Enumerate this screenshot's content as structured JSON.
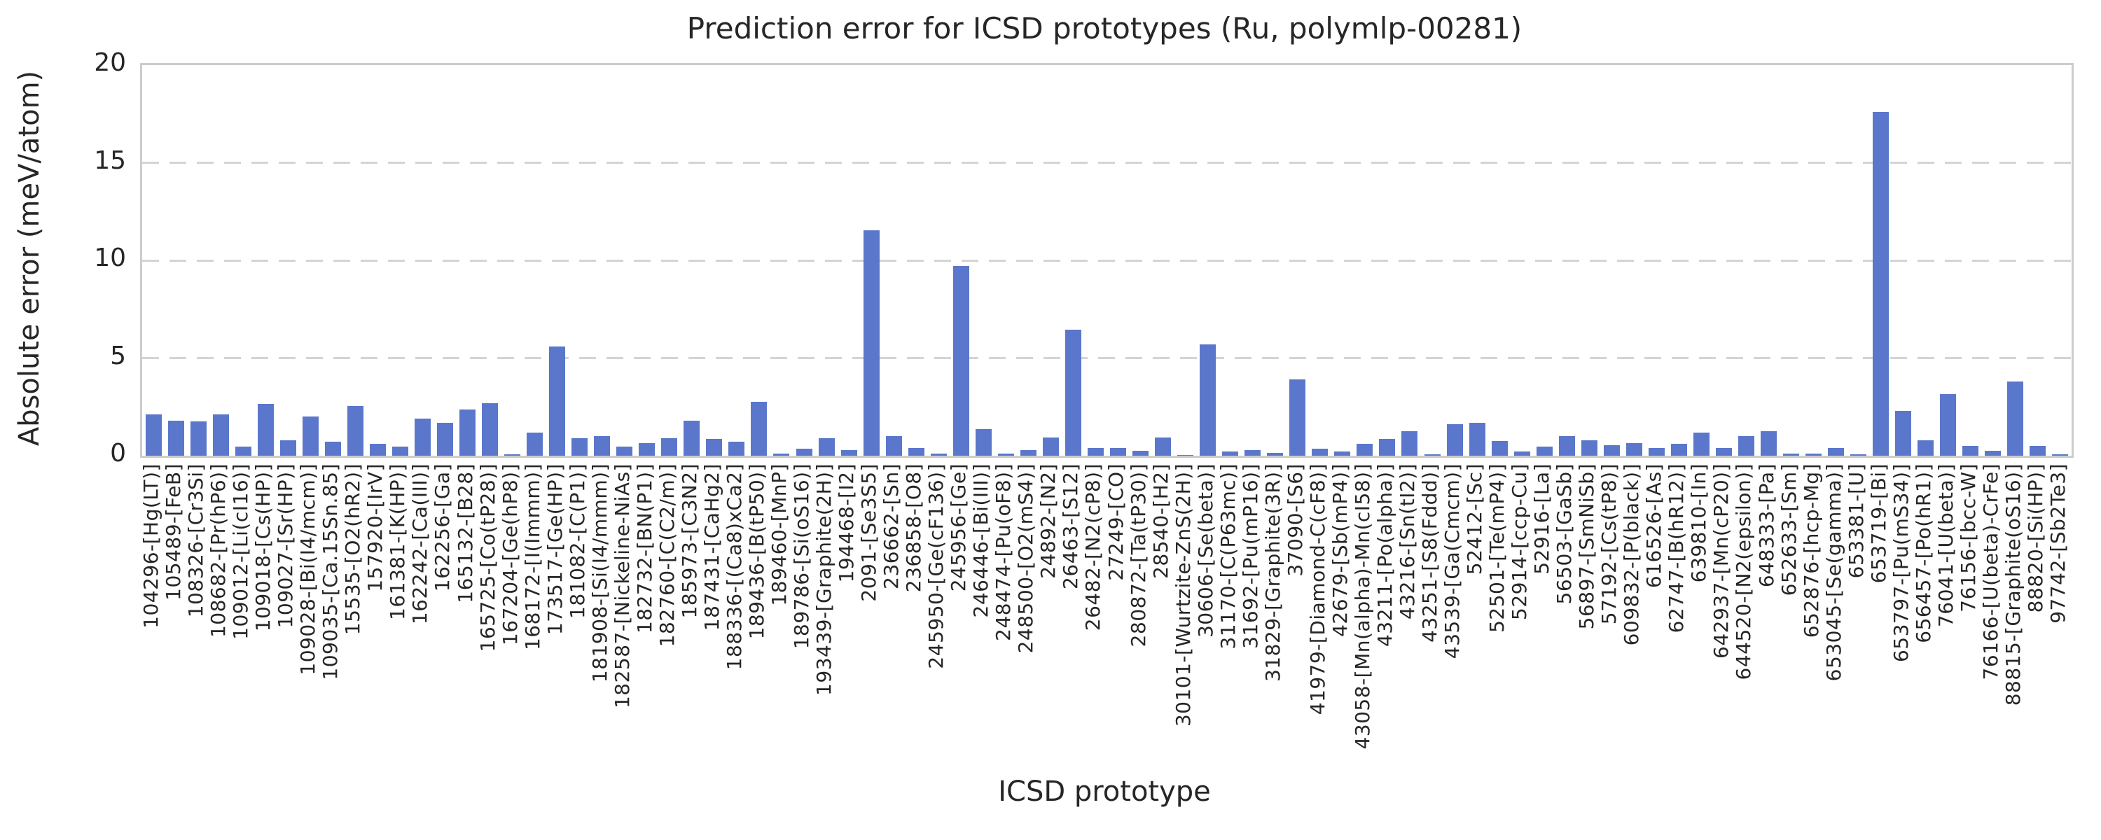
{
  "chart_data": {
    "type": "bar",
    "title": "Prediction error for ICSD prototypes (Ru, polymlp-00281)",
    "xlabel": "ICSD prototype",
    "ylabel": "Absolute error (meV/atom)",
    "ylim": [
      0,
      20
    ],
    "yticks": [
      0,
      5,
      10,
      15,
      20
    ],
    "grid": "horizontal-dashed",
    "legend": "none",
    "bar_color": "#5a77cc",
    "categories": [
      "104296-[Hg(LT)]",
      "105489-[FeB]",
      "108326-[Cr3Si]",
      "108682-[Pr(hP6)]",
      "109012-[Li(cI16)]",
      "109018-[Cs(HP)]",
      "109027-[Sr(HP)]",
      "109028-[Bi(I4/mcm)]",
      "109035-[Ca.15Sn.85]",
      "15535-[O2(hR2)]",
      "157920-[IrV]",
      "161381-[K(HP)]",
      "162242-[Ca(III)]",
      "162256-[Ga]",
      "165132-[B28]",
      "165725-[Co(tP28)]",
      "167204-[Ge(hP8)]",
      "168172-[I(Immm)]",
      "173517-[Ge(HP)]",
      "181082-[C(P1)]",
      "181908-[Si(I4/mmm)]",
      "182587-[Nickeline-NiAs]",
      "182732-[BN(P1)]",
      "182760-[C(C2/m)]",
      "185973-[C3N2]",
      "187431-[CaHg2]",
      "188336-[(Ca8)xCa2]",
      "189436-[B(tP50)]",
      "189460-[MnP]",
      "189786-[Si(oS16)]",
      "193439-[Graphite(2H)]",
      "194468-[I2]",
      "2091-[Se3S5]",
      "236662-[Sn]",
      "236858-[O8]",
      "245950-[Ge(cF136)]",
      "245956-[Ge]",
      "246446-[Bi(III)]",
      "248474-[Pu(oF8)]",
      "248500-[O2(mS4)]",
      "24892-[N2]",
      "26463-[S12]",
      "26482-[N2(cP8)]",
      "27249-[CO]",
      "280872-[Ta(tP30)]",
      "28540-[H2]",
      "30101-[Wurtzite-ZnS(2H)]",
      "30606-[Se(beta)]",
      "31170-[C(P63mc)]",
      "31692-[Pu(mP16)]",
      "31829-[Graphite(3R)]",
      "37090-[S6]",
      "41979-[Diamond-C(cF8)]",
      "42679-[Sb(mP4)]",
      "43058-[Mn(alpha)-Mn(cI58)]",
      "43211-[Po(alpha)]",
      "43216-[Sn(tI2)]",
      "43251-[S8(Fddd)]",
      "43539-[Ga(Cmcm)]",
      "52412-[Sc]",
      "52501-[Te(mP4)]",
      "52914-[ccp-Cu]",
      "52916-[La]",
      "56503-[GaSb]",
      "56897-[SmNiSb]",
      "57192-[Cs(tP8)]",
      "609832-[P(black)]",
      "616526-[As]",
      "62747-[B(hR12)]",
      "639810-[In]",
      "642937-[Mn(cP20)]",
      "644520-[N2(epsilon)]",
      "648333-[Pa]",
      "652633-[Sm]",
      "652876-[hcp-Mg]",
      "653045-[Se(gamma)]",
      "653381-[U]",
      "653719-[Bi]",
      "653797-[Pu(mS34)]",
      "656457-[Po(hR1)]",
      "76041-[U(beta)]",
      "76156-[bcc-W]",
      "76166-[U(beta)-CrFe]",
      "88815-[Graphite(oS16)]",
      "88820-[Si(HP)]",
      "97742-[Sb2Te3]"
    ],
    "values": [
      2.1,
      1.8,
      1.75,
      2.1,
      0.45,
      2.65,
      0.8,
      2.0,
      0.7,
      2.55,
      0.6,
      0.45,
      1.9,
      1.7,
      2.35,
      2.7,
      0.08,
      1.2,
      5.6,
      0.9,
      1.0,
      0.45,
      0.65,
      0.9,
      1.8,
      0.85,
      0.7,
      2.75,
      0.12,
      0.35,
      0.9,
      0.3,
      11.55,
      1.0,
      0.4,
      0.1,
      9.7,
      1.35,
      0.1,
      0.3,
      0.95,
      6.45,
      0.4,
      0.4,
      0.25,
      0.95,
      0.03,
      5.7,
      0.2,
      0.3,
      0.15,
      3.9,
      0.35,
      0.2,
      0.6,
      0.85,
      1.25,
      0.08,
      1.6,
      1.7,
      0.75,
      0.2,
      0.45,
      1.0,
      0.8,
      0.55,
      0.65,
      0.4,
      0.6,
      1.2,
      0.4,
      1.0,
      1.25,
      0.1,
      0.1,
      0.4,
      0.08,
      17.6,
      2.3,
      0.8,
      3.15,
      0.5,
      0.25,
      3.8,
      0.5,
      0.07
    ],
    "style": {
      "background": "#ffffff",
      "text_color": "#262626",
      "spine_color": "#cccccc",
      "grid_color": "#d4d4d4"
    }
  }
}
